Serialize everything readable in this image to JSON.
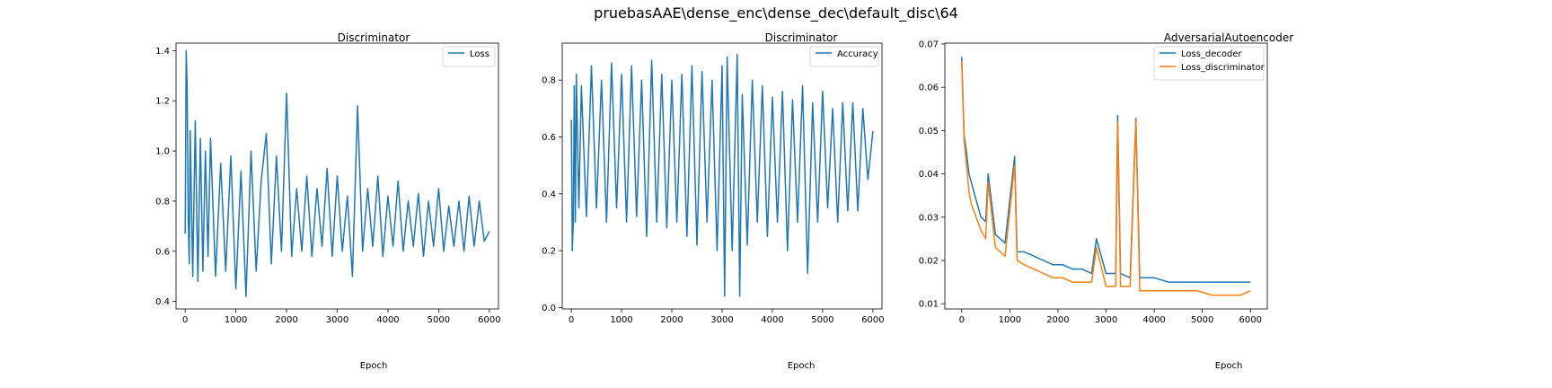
{
  "figure": {
    "suptitle": "pruebasAAE\\dense_enc\\dense_dec\\default_disc\\64"
  },
  "chart_data": [
    {
      "type": "line",
      "title": "Discriminator",
      "xlabel": "Epoch",
      "ylabel": "",
      "xlim": [
        -180,
        6180
      ],
      "ylim": [
        0.37,
        1.43
      ],
      "xticks": [
        0,
        1000,
        2000,
        3000,
        4000,
        5000,
        6000
      ],
      "yticks": [
        0.4,
        0.6,
        0.8,
        1.0,
        1.2,
        1.4
      ],
      "ytick_labels": [
        "0.4",
        "0.6",
        "0.8",
        "1.0",
        "1.2",
        "1.4"
      ],
      "legend": "top-right",
      "series": [
        {
          "name": "Loss",
          "color": "#1f77b4",
          "x": [
            0,
            20,
            40,
            60,
            80,
            100,
            150,
            200,
            250,
            300,
            350,
            400,
            450,
            500,
            600,
            700,
            800,
            900,
            1000,
            1100,
            1200,
            1300,
            1400,
            1500,
            1600,
            1700,
            1800,
            1900,
            2000,
            2100,
            2200,
            2300,
            2400,
            2500,
            2600,
            2700,
            2800,
            2900,
            3000,
            3100,
            3200,
            3300,
            3400,
            3500,
            3600,
            3700,
            3800,
            3900,
            4000,
            4100,
            4200,
            4300,
            4400,
            4500,
            4600,
            4700,
            4800,
            4900,
            5000,
            5100,
            5200,
            5300,
            5400,
            5500,
            5600,
            5700,
            5800,
            5900,
            6000
          ],
          "values": [
            0.67,
            1.4,
            1.25,
            0.75,
            0.55,
            1.08,
            0.5,
            1.12,
            0.48,
            1.05,
            0.52,
            1.0,
            0.58,
            1.05,
            0.5,
            0.95,
            0.52,
            0.98,
            0.45,
            0.92,
            0.42,
            1.0,
            0.52,
            0.88,
            1.07,
            0.55,
            0.98,
            0.6,
            1.23,
            0.58,
            0.85,
            0.6,
            0.9,
            0.58,
            0.85,
            0.62,
            0.93,
            0.58,
            0.9,
            0.6,
            0.82,
            0.5,
            1.18,
            0.6,
            0.85,
            0.62,
            0.9,
            0.58,
            0.82,
            0.62,
            0.88,
            0.6,
            0.8,
            0.62,
            0.83,
            0.58,
            0.8,
            0.62,
            0.85,
            0.6,
            0.78,
            0.62,
            0.8,
            0.6,
            0.82,
            0.62,
            0.8,
            0.64,
            0.68
          ]
        }
      ]
    },
    {
      "type": "line",
      "title": "Discriminator",
      "xlabel": "Epoch",
      "ylabel": "",
      "xlim": [
        -180,
        6180
      ],
      "ylim": [
        -0.005,
        0.93
      ],
      "xticks": [
        0,
        1000,
        2000,
        3000,
        4000,
        5000,
        6000
      ],
      "yticks": [
        0.0,
        0.2,
        0.4,
        0.6,
        0.8
      ],
      "ytick_labels": [
        "0.0",
        "0.2",
        "0.4",
        "0.6",
        "0.8"
      ],
      "legend": "top-right",
      "series": [
        {
          "name": "Accuracy",
          "color": "#1f77b4",
          "x": [
            0,
            20,
            40,
            60,
            80,
            100,
            150,
            200,
            300,
            400,
            500,
            600,
            700,
            800,
            900,
            1000,
            1100,
            1200,
            1300,
            1400,
            1500,
            1600,
            1700,
            1800,
            1900,
            2000,
            2100,
            2200,
            2300,
            2400,
            2500,
            2600,
            2700,
            2800,
            2900,
            3000,
            3050,
            3100,
            3200,
            3300,
            3350,
            3400,
            3500,
            3600,
            3700,
            3800,
            3900,
            4000,
            4100,
            4200,
            4300,
            4400,
            4500,
            4600,
            4700,
            4800,
            4900,
            5000,
            5100,
            5200,
            5300,
            5400,
            5500,
            5600,
            5700,
            5800,
            5900,
            6000
          ],
          "values": [
            0.66,
            0.2,
            0.3,
            0.78,
            0.3,
            0.82,
            0.35,
            0.78,
            0.32,
            0.85,
            0.35,
            0.8,
            0.3,
            0.86,
            0.35,
            0.82,
            0.3,
            0.85,
            0.32,
            0.8,
            0.25,
            0.87,
            0.3,
            0.82,
            0.28,
            0.8,
            0.3,
            0.82,
            0.25,
            0.85,
            0.22,
            0.83,
            0.3,
            0.8,
            0.2,
            0.85,
            0.04,
            0.88,
            0.2,
            0.89,
            0.04,
            0.75,
            0.22,
            0.8,
            0.3,
            0.78,
            0.25,
            0.74,
            0.3,
            0.76,
            0.2,
            0.73,
            0.3,
            0.78,
            0.12,
            0.72,
            0.3,
            0.76,
            0.35,
            0.7,
            0.3,
            0.72,
            0.34,
            0.72,
            0.34,
            0.7,
            0.45,
            0.62
          ]
        }
      ]
    },
    {
      "type": "line",
      "title": "AdversarialAutoencoder",
      "xlabel": "Epoch",
      "ylabel": "",
      "xlim": [
        -350,
        6350
      ],
      "ylim": [
        0.0088,
        0.0702
      ],
      "xticks": [
        0,
        1000,
        2000,
        3000,
        4000,
        5000,
        6000
      ],
      "yticks": [
        0.01,
        0.02,
        0.03,
        0.04,
        0.05,
        0.06,
        0.07
      ],
      "ytick_labels": [
        "0.01",
        "0.02",
        "0.03",
        "0.04",
        "0.05",
        "0.06",
        "0.07"
      ],
      "legend": "top-right",
      "series": [
        {
          "name": "Loss_decoder",
          "color": "#1f77b4",
          "x": [
            0,
            50,
            100,
            150,
            200,
            300,
            400,
            500,
            550,
            700,
            900,
            1100,
            1150,
            1300,
            1500,
            1700,
            1900,
            2100,
            2300,
            2500,
            2700,
            2800,
            3000,
            3200,
            3240,
            3300,
            3500,
            3620,
            3700,
            4000,
            4300,
            4600,
            4900,
            5200,
            5500,
            5800,
            6000
          ],
          "values": [
            0.067,
            0.049,
            0.045,
            0.04,
            0.038,
            0.034,
            0.03,
            0.029,
            0.04,
            0.026,
            0.024,
            0.044,
            0.022,
            0.022,
            0.021,
            0.02,
            0.019,
            0.019,
            0.018,
            0.018,
            0.017,
            0.025,
            0.017,
            0.017,
            0.0535,
            0.017,
            0.016,
            0.0528,
            0.016,
            0.016,
            0.015,
            0.015,
            0.015,
            0.015,
            0.015,
            0.015,
            0.015
          ]
        },
        {
          "name": "Loss_discriminator",
          "color": "#ff7f0e",
          "x": [
            0,
            50,
            100,
            150,
            200,
            300,
            400,
            500,
            550,
            700,
            900,
            1100,
            1150,
            1300,
            1500,
            1700,
            1900,
            2100,
            2300,
            2500,
            2700,
            2800,
            3000,
            3200,
            3240,
            3300,
            3500,
            3620,
            3700,
            4000,
            4300,
            4600,
            4900,
            5200,
            5500,
            5800,
            6000
          ],
          "values": [
            0.066,
            0.048,
            0.042,
            0.036,
            0.033,
            0.03,
            0.027,
            0.025,
            0.038,
            0.023,
            0.021,
            0.042,
            0.02,
            0.019,
            0.018,
            0.017,
            0.016,
            0.016,
            0.015,
            0.015,
            0.015,
            0.023,
            0.014,
            0.014,
            0.052,
            0.014,
            0.014,
            0.052,
            0.013,
            0.013,
            0.013,
            0.013,
            0.013,
            0.012,
            0.012,
            0.012,
            0.013
          ]
        }
      ]
    }
  ]
}
